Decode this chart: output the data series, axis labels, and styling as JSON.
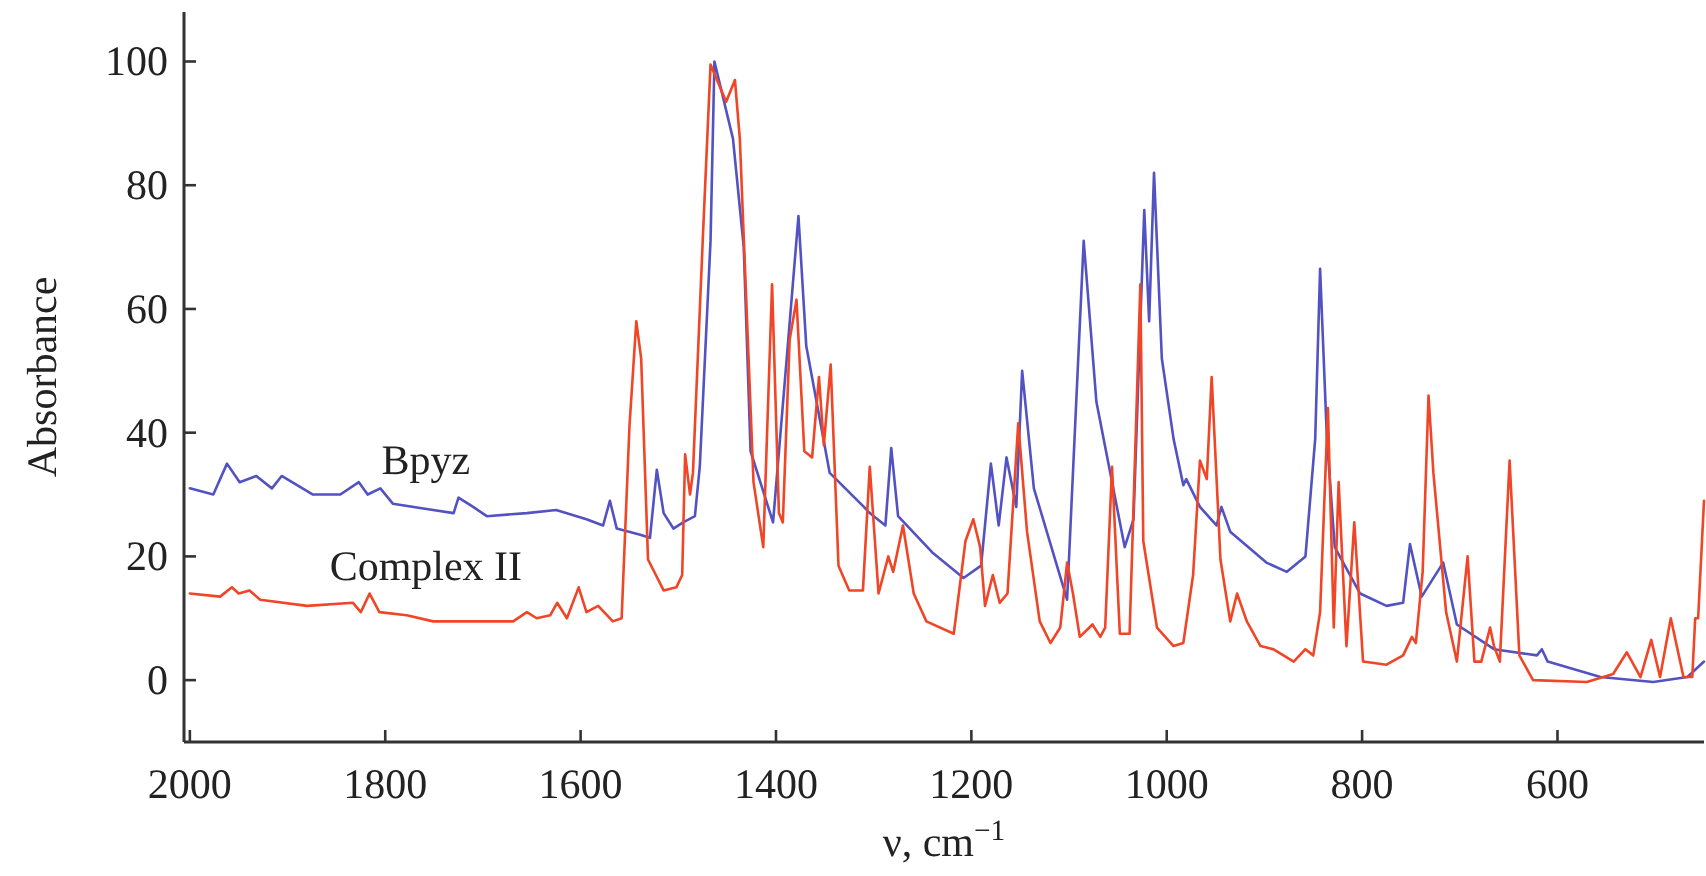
{
  "chart_data": {
    "type": "line",
    "xlabel": "ν, cm$^{−1}$",
    "ylabel": "Absorbance",
    "xlim": [
      2006,
      450
    ],
    "ylim": [
      -10,
      108
    ],
    "xticks": [
      2000,
      1800,
      1600,
      1400,
      1200,
      1000,
      800,
      600
    ],
    "yticks": [
      0,
      20,
      40,
      60,
      80,
      100
    ],
    "grid": false,
    "marker": "none",
    "line_style": "solid",
    "series": [
      {
        "name": "Bpyz",
        "color": "#5252c2",
        "x": [
          2000,
          1976,
          1962,
          1949,
          1932,
          1916,
          1906,
          1874,
          1846,
          1827,
          1818,
          1805,
          1792,
          1751,
          1730,
          1725,
          1710,
          1696,
          1655,
          1625,
          1594,
          1577,
          1570,
          1563,
          1539,
          1529,
          1522,
          1515,
          1505,
          1495,
          1483,
          1478,
          1467,
          1463,
          1444,
          1433,
          1426,
          1403,
          1389,
          1377,
          1369,
          1345,
          1310,
          1304,
          1288,
          1282,
          1275,
          1239,
          1208,
          1190,
          1180,
          1172,
          1164,
          1154,
          1148,
          1136,
          1102,
          1085,
          1072,
          1043,
          1034,
          1023,
          1018,
          1013,
          1005,
          993,
          983,
          980,
          966,
          949,
          944,
          935,
          898,
          877,
          858,
          848,
          843,
          836,
          828,
          802,
          775,
          758,
          751,
          739,
          717,
          703,
          665,
          621,
          616,
          610,
          556,
          502,
          467,
          450
        ],
        "values": [
          31,
          30,
          35,
          32,
          33,
          31,
          33,
          30,
          30,
          32,
          30,
          31,
          28.5,
          27.5,
          27,
          29.5,
          28,
          26.5,
          27,
          27.5,
          26,
          25,
          29,
          24.5,
          23.5,
          23,
          34,
          27,
          24.5,
          25.5,
          26.5,
          34.5,
          71,
          100,
          87.5,
          70,
          37,
          25.5,
          52,
          75,
          54,
          33.5,
          28,
          27,
          25,
          37.5,
          26.5,
          20.5,
          16.5,
          18.5,
          35,
          25,
          36,
          28,
          50,
          31,
          13,
          71,
          45,
          21.5,
          26,
          76,
          58,
          82,
          52,
          39,
          31.5,
          32.5,
          28,
          25,
          28,
          24,
          19,
          17.5,
          20,
          39,
          66.5,
          39,
          21.5,
          14,
          12,
          12.5,
          22,
          13.5,
          19,
          9,
          5,
          4,
          5,
          3,
          0.5,
          -0.3,
          0.5,
          3
        ]
      },
      {
        "name": "Complex II",
        "color": "#f04526",
        "x": [
          2000,
          1969,
          1957,
          1950,
          1939,
          1928,
          1880,
          1833,
          1825,
          1816,
          1806,
          1778,
          1751,
          1717,
          1669,
          1655,
          1645,
          1631,
          1624,
          1614,
          1602,
          1594,
          1582,
          1567,
          1558,
          1550,
          1543,
          1538,
          1531,
          1515,
          1502,
          1496,
          1493,
          1488,
          1485,
          1475,
          1467,
          1451,
          1442,
          1437,
          1423,
          1413,
          1404,
          1397,
          1393,
          1386,
          1379,
          1371,
          1363,
          1356,
          1351,
          1344,
          1336,
          1325,
          1311,
          1304,
          1295,
          1285,
          1280,
          1270,
          1259,
          1246,
          1218,
          1206,
          1198,
          1191,
          1186,
          1178,
          1171,
          1163,
          1152,
          1143,
          1130,
          1119,
          1109,
          1102,
          1096,
          1089,
          1076,
          1068,
          1063,
          1056,
          1048,
          1038,
          1027,
          1024,
          1010,
          993,
          983,
          973,
          966,
          959,
          954,
          945,
          935,
          928,
          918,
          904,
          891,
          870,
          858,
          850,
          843,
          835,
          829,
          824,
          816,
          808,
          799,
          775,
          758,
          749,
          745,
          738,
          732,
          727,
          714,
          703,
          692,
          685,
          678,
          669,
          665,
          659,
          649,
          639,
          625,
          570,
          543,
          529,
          515,
          504,
          495,
          484,
          471,
          462,
          459,
          456,
          450
        ],
        "values": [
          14,
          13.5,
          15,
          14,
          14.5,
          13,
          12,
          12.5,
          11,
          14,
          11,
          10.5,
          9.5,
          9.5,
          9.5,
          11,
          10,
          10.5,
          12.5,
          10,
          15,
          11,
          12,
          9.5,
          10,
          41,
          58,
          52,
          19.5,
          14.5,
          15,
          17,
          36.5,
          30,
          33.5,
          71,
          99.5,
          93.5,
          97,
          87.5,
          32,
          21.5,
          64,
          27,
          25.5,
          55,
          61.5,
          37,
          36,
          49,
          38,
          51,
          18.5,
          14.5,
          14.5,
          34.5,
          14,
          20,
          17.5,
          25,
          14,
          9.5,
          7.5,
          22.5,
          26,
          21.5,
          12,
          17,
          12.5,
          14,
          41.5,
          24,
          9.5,
          6,
          8.5,
          19,
          14,
          7,
          9,
          7,
          8.5,
          34.5,
          7.5,
          7.5,
          64,
          22.5,
          8.5,
          5.5,
          6,
          17,
          35.5,
          32.5,
          49,
          19.5,
          9.5,
          14,
          9.5,
          5.5,
          5,
          3,
          5,
          4,
          11,
          44,
          8.5,
          32,
          5.5,
          25.5,
          3,
          2.5,
          4,
          7,
          6,
          17.5,
          46,
          33.5,
          11,
          3,
          20,
          3,
          3,
          8.5,
          5.5,
          3,
          35.5,
          4,
          0,
          -0.3,
          1,
          4.5,
          0.5,
          6.5,
          0.5,
          10,
          0.5,
          0.5,
          10,
          10,
          29
        ]
      }
    ]
  }
}
